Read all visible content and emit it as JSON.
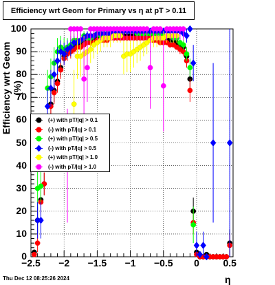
{
  "title": "Efficiency wrt Geom for Primary vs    η  at pT > 0.11",
  "datestamp": "Thu Dec 12 08:25:26 2024",
  "chart_data": {
    "type": "scatter",
    "title": "Efficiency wrt Geom for Primary vs    η  at pT > 0.11",
    "xlabel": "η",
    "ylabel": "Efficiency wrt Geom (%)",
    "xlim": [
      -2.5,
      0.55
    ],
    "ylim": [
      0,
      100
    ],
    "grid": true,
    "legend_position": "left-middle",
    "x_ticks": [
      "−2.5",
      "−2",
      "−1.5",
      "−1",
      "−0.5",
      "0",
      "0.5"
    ],
    "y_ticks": [
      "0",
      "10",
      "20",
      "30",
      "40",
      "50",
      "60",
      "70",
      "80",
      "90",
      "100"
    ],
    "series": [
      {
        "name": "(+) with pT/|q| > 0.1",
        "color": "#000000",
        "marker": "circle",
        "x": [
          -2.45,
          -2.4,
          -2.35,
          -2.3,
          -2.25,
          -2.2,
          -2.15,
          -2.1,
          -2.05,
          -2.0,
          -1.95,
          -1.9,
          -1.85,
          -1.8,
          -1.75,
          -1.7,
          -1.65,
          -1.6,
          -1.55,
          -1.5,
          -1.45,
          -1.4,
          -1.35,
          -1.3,
          -1.25,
          -1.2,
          -1.15,
          -1.1,
          -1.05,
          -1.0,
          -0.95,
          -0.9,
          -0.85,
          -0.8,
          -0.75,
          -0.7,
          -0.65,
          -0.6,
          -0.55,
          -0.5,
          -0.45,
          -0.4,
          -0.35,
          -0.3,
          -0.25,
          -0.2,
          -0.15,
          -0.1,
          -0.05,
          0.0,
          0.05,
          0.1,
          0.15,
          0.2,
          0.25,
          0.3,
          0.35,
          0.4,
          0.45,
          0.5
        ],
        "y": [
          2,
          16,
          25,
          32,
          53,
          67,
          73,
          77,
          83,
          88,
          90,
          91,
          92,
          93,
          93,
          94,
          95,
          95,
          95,
          96,
          96,
          96,
          96,
          97,
          97,
          97,
          97,
          97,
          97,
          97,
          97,
          97,
          97,
          97,
          97,
          97,
          97,
          96,
          96,
          96,
          96,
          95,
          95,
          94,
          93,
          92,
          88,
          78,
          20,
          2,
          0,
          0,
          1,
          0,
          0,
          0,
          0,
          0,
          0,
          6
        ],
        "err": [
          1,
          6,
          5,
          5,
          6,
          5,
          5,
          4,
          4,
          3,
          3,
          3,
          2,
          2,
          2,
          2,
          2,
          2,
          1,
          1,
          1,
          1,
          1,
          1,
          1,
          1,
          1,
          1,
          1,
          1,
          1,
          1,
          1,
          1,
          1,
          1,
          1,
          1,
          1,
          1,
          1,
          1,
          1,
          1,
          2,
          2,
          3,
          5,
          6,
          2,
          1,
          1,
          1,
          1,
          1,
          1,
          1,
          1,
          1,
          6
        ]
      },
      {
        "name": "(-) with pT/|q| > 0.1",
        "color": "#ff0000",
        "marker": "circle",
        "x": [
          -2.45,
          -2.4,
          -2.35,
          -2.3,
          -2.25,
          -2.2,
          -2.15,
          -2.1,
          -2.05,
          -2.0,
          -1.95,
          -1.9,
          -1.85,
          -1.8,
          -1.75,
          -1.7,
          -1.65,
          -1.6,
          -1.55,
          -1.5,
          -1.45,
          -1.4,
          -1.35,
          -1.3,
          -1.25,
          -1.2,
          -1.15,
          -1.1,
          -1.05,
          -1.0,
          -0.95,
          -0.9,
          -0.85,
          -0.8,
          -0.75,
          -0.7,
          -0.65,
          -0.6,
          -0.55,
          -0.5,
          -0.45,
          -0.4,
          -0.35,
          -0.3,
          -0.25,
          -0.2,
          -0.15,
          -0.1,
          -0.05,
          0.0,
          0.05,
          0.1,
          0.15,
          0.2,
          0.25,
          0.3,
          0.35,
          0.4,
          0.45,
          0.5
        ],
        "y": [
          1,
          6,
          24,
          32,
          50,
          66,
          72,
          76,
          82,
          87,
          89,
          90,
          91,
          92,
          92,
          93,
          94,
          94,
          94,
          95,
          95,
          95,
          95,
          96,
          96,
          96,
          96,
          96,
          96,
          96,
          96,
          96,
          96,
          96,
          96,
          96,
          95,
          95,
          94,
          94,
          94,
          93,
          93,
          92,
          91,
          90,
          86,
          73,
          15,
          1,
          0,
          0,
          0,
          0,
          0,
          0,
          0,
          0,
          0,
          5
        ],
        "err": [
          1,
          4,
          5,
          5,
          6,
          5,
          5,
          4,
          4,
          3,
          3,
          3,
          2,
          2,
          2,
          2,
          2,
          2,
          1,
          1,
          1,
          1,
          1,
          1,
          1,
          1,
          1,
          1,
          1,
          1,
          1,
          1,
          1,
          1,
          1,
          1,
          1,
          1,
          1,
          1,
          1,
          1,
          1,
          1,
          2,
          2,
          3,
          5,
          5,
          1,
          1,
          1,
          1,
          1,
          1,
          1,
          1,
          1,
          1,
          5
        ]
      },
      {
        "name": "(+) with pT/|q| > 0.5",
        "color": "#00ff00",
        "marker": "circle",
        "x": [
          -2.4,
          -2.35,
          -2.25,
          -2.2,
          -2.15,
          -2.1,
          -2.05,
          -2.0,
          -1.95,
          -1.9,
          -1.85,
          -1.8,
          -1.75,
          -1.7,
          -1.65,
          -1.6,
          -1.55,
          -1.5,
          -1.45,
          -1.4,
          -1.35,
          -1.3,
          -1.25,
          -1.2,
          -1.15,
          -1.1,
          -1.05,
          -1.0,
          -0.95,
          -0.9,
          -0.85,
          -0.8,
          -0.75,
          -0.7,
          -0.65,
          -0.6,
          -0.55,
          -0.5,
          -0.45,
          -0.4,
          -0.35,
          -0.3,
          -0.25,
          -0.2,
          -0.15,
          -0.1,
          -0.05
        ],
        "y": [
          30,
          31,
          74,
          79,
          85,
          90,
          92,
          91,
          92,
          93,
          95,
          95,
          95,
          97,
          96,
          96,
          97,
          98,
          97,
          98,
          98,
          98,
          98,
          99,
          99,
          99,
          99,
          99,
          99,
          98,
          98,
          98,
          98,
          98,
          98,
          98,
          98,
          97,
          97,
          97,
          96,
          96,
          94,
          93,
          89,
          83,
          14
        ],
        "err": [
          8,
          8,
          8,
          8,
          7,
          6,
          5,
          5,
          4,
          4,
          3,
          3,
          3,
          2,
          2,
          2,
          2,
          2,
          1,
          1,
          1,
          1,
          1,
          1,
          1,
          1,
          1,
          1,
          1,
          1,
          1,
          1,
          1,
          1,
          1,
          1,
          1,
          1,
          1,
          1,
          1,
          1,
          2,
          2,
          3,
          4,
          8
        ]
      },
      {
        "name": "(-) with pT/|q| > 0.5",
        "color": "#0000ff",
        "marker": "diamond",
        "x": [
          -2.4,
          -2.35,
          -2.25,
          -2.2,
          -2.15,
          -2.1,
          -2.05,
          -2.0,
          -1.95,
          -1.9,
          -1.85,
          -1.8,
          -1.75,
          -1.7,
          -1.65,
          -1.6,
          -1.55,
          -1.5,
          -1.45,
          -1.4,
          -1.35,
          -1.3,
          -1.25,
          -1.2,
          -1.15,
          -1.1,
          -1.05,
          -1.0,
          -0.95,
          -0.9,
          -0.85,
          -0.8,
          -0.75,
          -0.7,
          -0.65,
          -0.6,
          -0.55,
          -0.5,
          -0.45,
          -0.4,
          -0.35,
          -0.3,
          -0.25,
          -0.2,
          -0.15,
          -0.1,
          -0.05,
          0.0,
          0.05,
          0.1,
          0.15,
          0.25,
          0.5
        ],
        "y": [
          16,
          16,
          66,
          74,
          80,
          86,
          90,
          89,
          91,
          92,
          94,
          94,
          95,
          96,
          97,
          97,
          97,
          98,
          98,
          98,
          98,
          98,
          99,
          99,
          99,
          99,
          99,
          99,
          99,
          99,
          99,
          99,
          99,
          99,
          99,
          99,
          99,
          99,
          99,
          99,
          99,
          99,
          99,
          98,
          97,
          100,
          85,
          5,
          1,
          5,
          0,
          50,
          50
        ],
        "err": [
          8,
          8,
          8,
          8,
          7,
          6,
          5,
          5,
          4,
          4,
          3,
          3,
          3,
          2,
          2,
          2,
          2,
          2,
          1,
          1,
          1,
          1,
          1,
          1,
          1,
          1,
          1,
          1,
          1,
          1,
          1,
          1,
          1,
          1,
          1,
          1,
          1,
          1,
          1,
          1,
          1,
          1,
          1,
          2,
          3,
          1,
          8,
          6,
          1,
          6,
          1,
          35,
          50
        ]
      },
      {
        "name": "(+) with pT/|q| > 1.0",
        "color": "#ffff00",
        "marker": "circle",
        "x": [
          -1.85,
          -1.8,
          -1.75,
          -1.7,
          -1.65,
          -1.6,
          -1.55,
          -1.5,
          -1.45,
          -1.4,
          -1.35,
          -1.3,
          -1.25,
          -1.2,
          -1.15,
          -1.1,
          -1.05,
          -1.0,
          -0.95,
          -0.9,
          -0.85,
          -0.8,
          -0.75,
          -0.7,
          -0.65,
          -0.6,
          -0.55,
          -0.5,
          -0.45,
          -0.4,
          -0.35,
          -0.3
        ],
        "y": [
          67,
          88,
          88,
          89,
          90,
          91,
          93,
          94,
          95,
          96,
          96,
          96,
          97,
          97,
          97,
          88,
          89,
          89,
          90,
          91,
          92,
          93,
          94,
          95,
          96,
          96,
          96,
          96,
          97,
          97,
          97,
          97
        ],
        "err": [
          15,
          10,
          9,
          8,
          7,
          6,
          6,
          5,
          5,
          4,
          4,
          4,
          3,
          3,
          3,
          8,
          8,
          8,
          7,
          6,
          6,
          5,
          5,
          4,
          4,
          4,
          3,
          3,
          3,
          3,
          3,
          3
        ]
      },
      {
        "name": "(-) with pT/|q| > 1.0",
        "color": "#ff00ff",
        "marker": "circle",
        "x": [
          -1.95,
          -1.9,
          -1.85,
          -1.8,
          -1.75,
          -1.7,
          -1.65,
          -1.6,
          -1.55,
          -1.5,
          -1.45,
          -1.4,
          -1.35,
          -1.3,
          -1.25,
          -1.2,
          -1.15,
          -1.1,
          -1.05,
          -1.0,
          -0.95,
          -0.9,
          -0.85,
          -0.8,
          -0.75,
          -0.7,
          -0.65,
          -0.6,
          -0.55,
          -0.5,
          -0.45,
          -0.4,
          -0.35,
          -0.3,
          -0.25,
          -0.2
        ],
        "y": [
          40,
          100,
          100,
          100,
          100,
          78,
          83,
          100,
          100,
          100,
          100,
          100,
          100,
          100,
          100,
          100,
          100,
          100,
          100,
          100,
          100,
          100,
          100,
          100,
          100,
          83,
          100,
          100,
          100,
          75,
          100,
          100,
          100,
          100,
          100,
          100
        ],
        "err": [
          25,
          5,
          5,
          5,
          5,
          18,
          15,
          5,
          5,
          5,
          5,
          5,
          5,
          5,
          5,
          5,
          5,
          5,
          5,
          5,
          5,
          5,
          5,
          5,
          5,
          18,
          5,
          5,
          5,
          20,
          5,
          5,
          5,
          5,
          5,
          5
        ]
      }
    ]
  }
}
